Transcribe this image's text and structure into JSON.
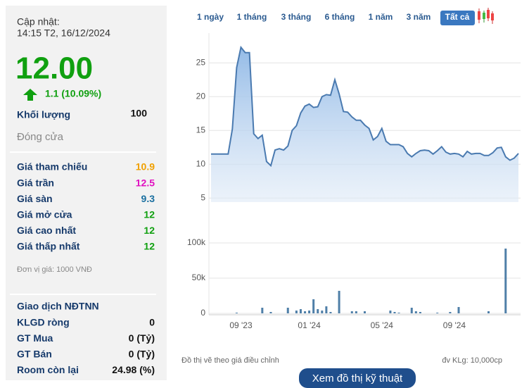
{
  "quote": {
    "updated_label": "Cập nhật:",
    "updated_time": "14:15 T2, 16/12/2024",
    "price": "12.00",
    "change": "1.1 (10.09%)",
    "volume_label": "Khối lượng",
    "volume": "100",
    "close_label": "Đóng cửa",
    "prices": [
      {
        "label": "Giá tham chiếu",
        "value": "10.9"
      },
      {
        "label": "Giá trần",
        "value": "12.5"
      },
      {
        "label": "Giá sàn",
        "value": "9.3"
      },
      {
        "label": "Giá mở cửa",
        "value": "12"
      },
      {
        "label": "Giá cao nhất",
        "value": "12"
      },
      {
        "label": "Giá thấp nhất",
        "value": "12"
      }
    ],
    "unit_note": "Đơn vị giá: 1000 VNĐ"
  },
  "foreign": {
    "title": "Giao dịch NĐTNN",
    "rows": [
      {
        "label": "KLGD ròng",
        "value": "0"
      },
      {
        "label": "GT Mua",
        "value": "0 (Tỷ)"
      },
      {
        "label": "GT Bán",
        "value": "0 (Tỷ)"
      },
      {
        "label": "Room còn lại",
        "value": "24.98 (%)"
      }
    ]
  },
  "ranges": {
    "buttons": [
      "1 ngày",
      "1 tháng",
      "3 tháng",
      "6 tháng",
      "1 năm",
      "3 năm",
      "Tất cả"
    ],
    "active": 6
  },
  "chart_data": [
    {
      "type": "area",
      "color": "#4a7ab0",
      "ylim": [
        4.4,
        29.4
      ],
      "yticks": [
        5,
        10,
        15,
        20,
        25
      ],
      "grid": true,
      "values": [
        11.5,
        11.5,
        11.5,
        11.5,
        11.5,
        15.2,
        24.3,
        27.3,
        26.5,
        26.5,
        14.5,
        13.8,
        14.3,
        10.4,
        9.8,
        12.1,
        12.3,
        12.1,
        12.7,
        15.0,
        15.7,
        17.6,
        18.6,
        18.9,
        18.4,
        18.5,
        20.0,
        20.3,
        20.2,
        22.5,
        20.4,
        17.8,
        17.7,
        17.0,
        16.5,
        16.5,
        15.8,
        15.3,
        13.6,
        14.1,
        15.3,
        13.4,
        12.9,
        12.9,
        12.9,
        12.6,
        11.6,
        11.1,
        11.6,
        12.0,
        12.1,
        12.0,
        11.5,
        12.0,
        12.6,
        11.8,
        11.5,
        11.6,
        11.5,
        11.1,
        11.9,
        11.5,
        11.6,
        11.6,
        11.3,
        11.3,
        11.7,
        12.4,
        12.5,
        11.1,
        10.6,
        10.9,
        11.6
      ]
    },
    {
      "type": "bar",
      "color": "#4f7fa8",
      "ylim": [
        0,
        140000
      ],
      "yticks": [
        0,
        {
          "value": 50000,
          "label": "50k"
        },
        {
          "value": 100000,
          "label": "100k"
        }
      ],
      "grid": true,
      "categories": [
        null,
        null,
        null,
        null,
        null,
        null,
        null,
        "09 '23",
        null,
        null,
        null,
        null,
        null,
        null,
        null,
        null,
        null,
        null,
        null,
        null,
        null,
        null,
        null,
        "01 '24",
        null,
        null,
        null,
        null,
        null,
        null,
        null,
        null,
        null,
        null,
        null,
        null,
        null,
        null,
        null,
        null,
        "05 '24",
        null,
        null,
        null,
        null,
        null,
        null,
        null,
        null,
        null,
        null,
        null,
        null,
        null,
        null,
        null,
        null,
        "09 '24",
        null,
        null,
        null,
        null,
        null,
        null,
        null,
        null,
        null,
        null,
        null,
        null,
        null,
        null,
        null
      ],
      "values": [
        null,
        null,
        null,
        null,
        null,
        null,
        1000,
        null,
        null,
        null,
        null,
        null,
        8000,
        null,
        2000,
        null,
        null,
        null,
        8000,
        null,
        4000,
        6000,
        3000,
        4000,
        20000,
        6000,
        4000,
        10000,
        2000,
        null,
        32000,
        null,
        null,
        3000,
        3000,
        null,
        3000,
        null,
        null,
        null,
        null,
        null,
        4000,
        2000,
        1000,
        null,
        null,
        8000,
        3000,
        2000,
        null,
        null,
        null,
        1000,
        null,
        null,
        2000,
        null,
        9000,
        null,
        null,
        null,
        null,
        null,
        null,
        3000,
        null,
        null,
        null,
        92000,
        null,
        null,
        null
      ]
    }
  ],
  "notes": {
    "adjusted": "Đồ thị vẽ theo giá điều chỉnh",
    "volume_unit": "đv KLg: 10,000cp",
    "button": "Xem đồ thị kỹ thuật"
  }
}
